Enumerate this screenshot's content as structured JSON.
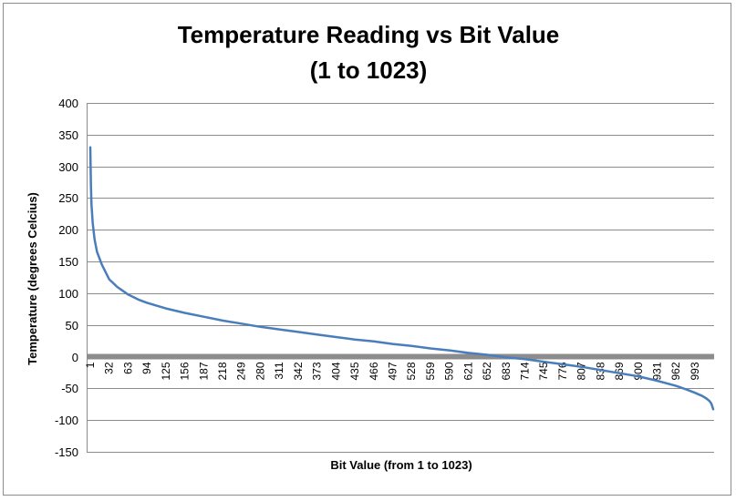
{
  "chart_data": {
    "type": "line",
    "title_line1": "Temperature Reading vs Bit Value",
    "title_line2": "(1 to 1023)",
    "xlabel": "Bit Value (from 1 to 1023)",
    "ylabel": "Temperature (degrees Celcius)",
    "ylim": [
      -150,
      400
    ],
    "yticks": [
      400,
      350,
      300,
      250,
      200,
      150,
      100,
      50,
      0,
      -50,
      -100,
      -150
    ],
    "xlim": [
      1,
      1023
    ],
    "xticks": [
      "1",
      "32",
      "63",
      "94",
      "125",
      "156",
      "187",
      "218",
      "249",
      "280",
      "311",
      "342",
      "373",
      "404",
      "435",
      "466",
      "497",
      "528",
      "559",
      "590",
      "621",
      "652",
      "683",
      "714",
      "745",
      "776",
      "807",
      "838",
      "869",
      "900",
      "931",
      "962",
      "993"
    ],
    "grid": true,
    "legend": "none",
    "series": [
      {
        "color": "#4a7ebb",
        "x": [
          1,
          2,
          3,
          5,
          8,
          12,
          20,
          32,
          45,
          63,
          80,
          94,
          125,
          156,
          187,
          218,
          249,
          280,
          311,
          342,
          373,
          404,
          435,
          466,
          497,
          528,
          559,
          590,
          621,
          652,
          683,
          714,
          745,
          776,
          807,
          838,
          869,
          900,
          931,
          962,
          980,
          993,
          1005,
          1012,
          1017,
          1020,
          1023
        ],
        "y": [
          330,
          270,
          240,
          210,
          185,
          165,
          145,
          122,
          110,
          98,
          90,
          85,
          76,
          69,
          63,
          57,
          52,
          47,
          43,
          39,
          35,
          31,
          27,
          24,
          20,
          17,
          13,
          10,
          6,
          3,
          -1,
          -4,
          -8,
          -12,
          -16,
          -21,
          -26,
          -31,
          -38,
          -46,
          -52,
          -57,
          -62,
          -66,
          -70,
          -74,
          -83
        ]
      }
    ]
  }
}
